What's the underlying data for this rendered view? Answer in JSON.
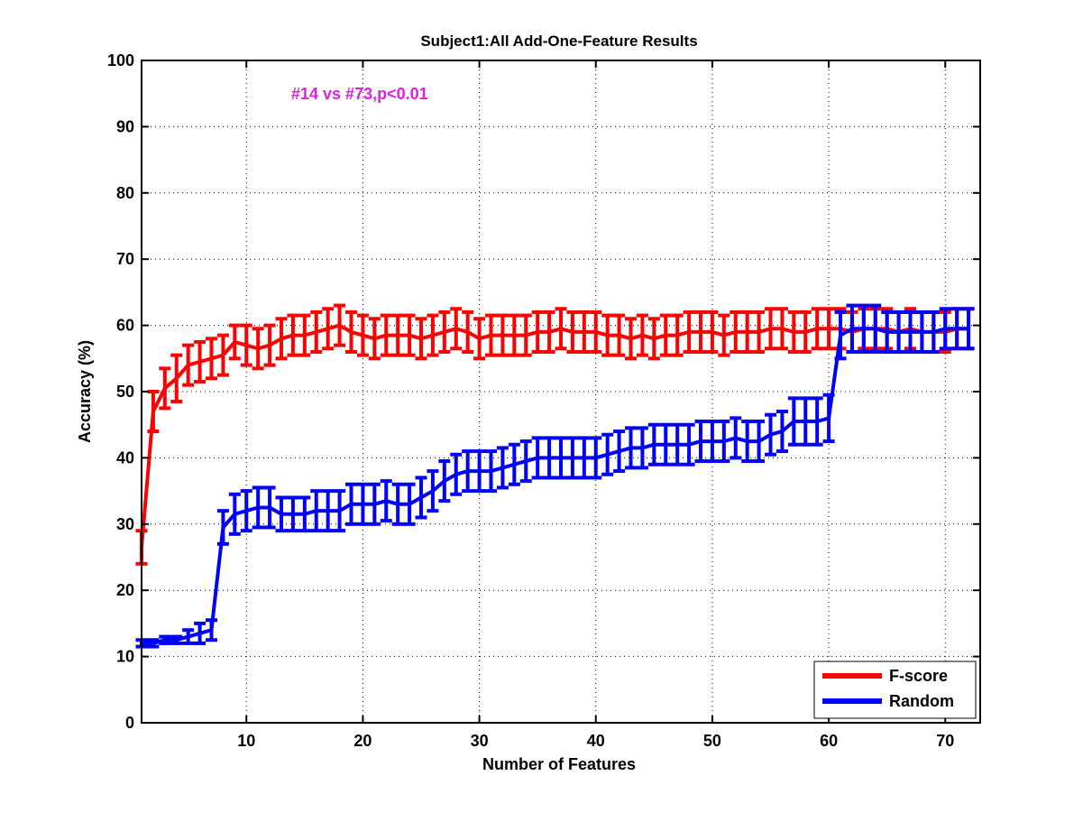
{
  "chart_data": {
    "type": "line",
    "title": "Subject1:All Add-One-Feature Results",
    "xlabel": "Number of Features",
    "ylabel": "Accuracy (%)",
    "xlim": [
      1,
      73
    ],
    "ylim": [
      0,
      100
    ],
    "x_ticks": [
      10,
      20,
      30,
      40,
      50,
      60,
      70
    ],
    "y_ticks": [
      0,
      10,
      20,
      30,
      40,
      50,
      60,
      70,
      80,
      90,
      100
    ],
    "x_tick_labels": [
      "10",
      "20",
      "30",
      "40",
      "50",
      "60",
      "70"
    ],
    "y_tick_labels": [
      "0",
      "10",
      "20",
      "30",
      "40",
      "50",
      "60",
      "70",
      "80",
      "90",
      "100"
    ],
    "grid": true,
    "legend_position": "bottom-right",
    "annotation": {
      "text": "#14 vs #73,p<0.01",
      "color": "#e020e0"
    },
    "series": [
      {
        "name": "F-score",
        "color": "#ff0000",
        "mean": [
          26.5,
          47.0,
          50.5,
          52.0,
          54.0,
          54.5,
          55.0,
          55.5,
          57.5,
          57.0,
          56.5,
          57.0,
          58.0,
          58.5,
          58.5,
          59.0,
          59.5,
          60.0,
          59.0,
          58.5,
          58.0,
          58.5,
          58.5,
          58.5,
          58.0,
          58.5,
          59.0,
          59.5,
          59.0,
          58.0,
          58.5,
          58.5,
          58.5,
          58.5,
          59.0,
          59.0,
          59.5,
          59.0,
          59.0,
          59.0,
          58.5,
          58.5,
          58.0,
          58.5,
          58.0,
          58.5,
          58.5,
          59.0,
          59.0,
          59.0,
          58.5,
          59.0,
          59.0,
          59.0,
          59.5,
          59.5,
          59.0,
          59.0,
          59.5,
          59.5,
          59.5,
          59.0,
          59.5,
          59.5,
          59.5,
          59.0,
          59.5,
          59.0,
          59.0,
          59.0,
          59.5,
          59.5
        ],
        "error": [
          2.5,
          3.0,
          3.0,
          3.5,
          3.0,
          3.0,
          3.0,
          3.0,
          2.5,
          3.0,
          3.0,
          3.0,
          3.0,
          3.0,
          3.0,
          3.0,
          3.0,
          3.0,
          3.0,
          3.0,
          3.0,
          3.0,
          3.0,
          3.0,
          3.0,
          3.0,
          3.0,
          3.0,
          3.0,
          3.0,
          3.0,
          3.0,
          3.0,
          3.0,
          3.0,
          3.0,
          3.0,
          3.0,
          3.0,
          3.0,
          3.0,
          3.0,
          3.0,
          3.0,
          3.0,
          3.0,
          3.0,
          3.0,
          3.0,
          3.0,
          3.0,
          3.0,
          3.0,
          3.0,
          3.0,
          3.0,
          3.0,
          3.0,
          3.0,
          3.0,
          3.0,
          3.0,
          3.0,
          3.0,
          3.0,
          3.0,
          3.0,
          3.0,
          3.0,
          3.0,
          3.0,
          3.0
        ]
      },
      {
        "name": "Random",
        "color": "#0000ff",
        "mean": [
          12.0,
          12.0,
          12.5,
          12.5,
          13.0,
          13.5,
          14.0,
          29.5,
          31.5,
          32.0,
          32.5,
          32.5,
          31.5,
          31.5,
          31.5,
          32.0,
          32.0,
          32.0,
          33.0,
          33.0,
          33.0,
          33.5,
          33.0,
          33.0,
          34.0,
          35.0,
          36.5,
          37.5,
          38.0,
          38.0,
          38.0,
          38.5,
          39.0,
          39.5,
          40.0,
          40.0,
          40.0,
          40.0,
          40.0,
          40.0,
          40.5,
          41.0,
          41.5,
          41.5,
          42.0,
          42.0,
          42.0,
          42.0,
          42.5,
          42.5,
          42.5,
          43.0,
          42.5,
          42.5,
          43.5,
          44.0,
          45.5,
          45.5,
          45.5,
          46.0,
          58.5,
          59.5,
          59.5,
          59.5,
          59.0,
          59.0,
          59.0,
          59.0,
          59.0,
          59.5,
          59.5,
          59.5
        ],
        "error": [
          0.5,
          0.5,
          0.5,
          0.5,
          1.0,
          1.5,
          1.5,
          2.5,
          3.0,
          3.0,
          3.0,
          3.0,
          2.5,
          2.5,
          2.5,
          3.0,
          3.0,
          3.0,
          3.0,
          3.0,
          3.0,
          3.0,
          3.0,
          3.0,
          3.0,
          3.0,
          3.0,
          3.0,
          3.0,
          3.0,
          3.0,
          3.0,
          3.0,
          3.0,
          3.0,
          3.0,
          3.0,
          3.0,
          3.0,
          3.0,
          3.0,
          3.0,
          3.0,
          3.0,
          3.0,
          3.0,
          3.0,
          3.0,
          3.0,
          3.0,
          3.0,
          3.0,
          3.0,
          3.0,
          3.0,
          3.0,
          3.5,
          3.5,
          3.5,
          3.5,
          3.5,
          3.5,
          3.5,
          3.5,
          3.0,
          3.0,
          3.0,
          3.0,
          3.0,
          3.0,
          3.0,
          3.0
        ]
      }
    ]
  }
}
